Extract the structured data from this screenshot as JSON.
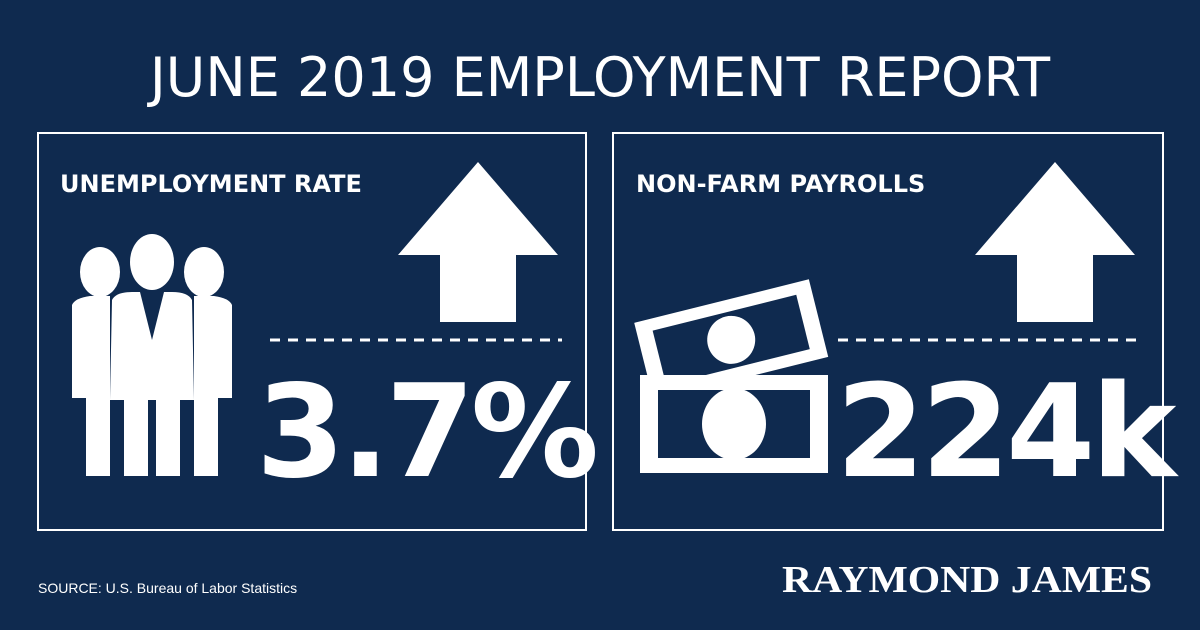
{
  "header": {
    "title": "JUNE 2019 EMPLOYMENT REPORT"
  },
  "panels": [
    {
      "label": "UNEMPLOYMENT RATE",
      "value": "3.7%"
    },
    {
      "label": "NON-FARM PAYROLLS",
      "value": "224k"
    }
  ],
  "footer": {
    "source": "SOURCE: U.S. Bureau of Labor Statistics",
    "brand": "RAYMOND JAMES"
  }
}
